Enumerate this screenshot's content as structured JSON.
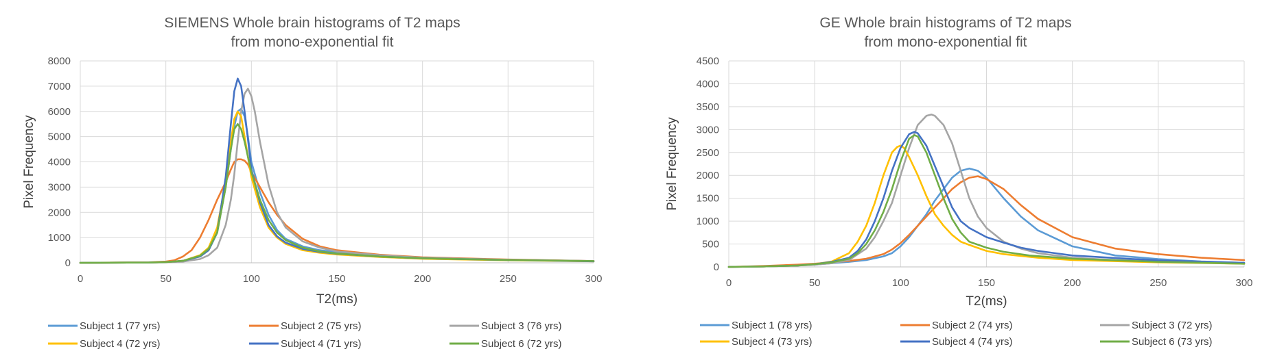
{
  "colors": {
    "blue": "#5b9bd5",
    "orange": "#ed7d31",
    "gray": "#a5a5a5",
    "yellow": "#ffc000",
    "darkblue": "#4472c4",
    "green": "#70ad47"
  },
  "chart_data": [
    {
      "type": "line",
      "title": "SIEMENS Whole brain histograms of T2 maps",
      "subtitle": "from mono-exponential fit",
      "xlabel": "T2(ms)",
      "ylabel": "Pixel Frequency",
      "xlim": [
        0,
        300
      ],
      "ylim": [
        0,
        8000
      ],
      "xticks": [
        0,
        50,
        100,
        150,
        200,
        250,
        300
      ],
      "yticks": [
        0,
        1000,
        2000,
        3000,
        4000,
        5000,
        6000,
        7000,
        8000
      ],
      "grid": true,
      "legend_position": "bottom",
      "series": [
        {
          "name": "Subject 1 (77 yrs)",
          "color": "blue",
          "x": [
            0,
            40,
            50,
            60,
            70,
            75,
            80,
            85,
            88,
            90,
            92,
            94,
            96,
            98,
            100,
            105,
            110,
            115,
            120,
            130,
            140,
            150,
            175,
            200,
            250,
            300
          ],
          "y": [
            0,
            10,
            30,
            80,
            250,
            500,
            1200,
            3000,
            4500,
            5400,
            6000,
            6100,
            5800,
            5000,
            4000,
            2800,
            1900,
            1300,
            950,
            650,
            500,
            420,
            280,
            200,
            120,
            70
          ]
        },
        {
          "name": "Subject 2 (75 yrs)",
          "color": "orange",
          "x": [
            0,
            40,
            50,
            55,
            60,
            65,
            70,
            75,
            80,
            85,
            88,
            90,
            92,
            94,
            96,
            98,
            100,
            105,
            110,
            115,
            120,
            130,
            140,
            150,
            175,
            200,
            250,
            300
          ],
          "y": [
            0,
            20,
            50,
            100,
            250,
            500,
            1000,
            1700,
            2500,
            3200,
            3700,
            4000,
            4100,
            4100,
            4050,
            3900,
            3600,
            3000,
            2400,
            1900,
            1500,
            950,
            650,
            500,
            320,
            220,
            130,
            70
          ]
        },
        {
          "name": "Subject 3 (76 yrs)",
          "color": "gray",
          "x": [
            0,
            40,
            50,
            60,
            70,
            75,
            80,
            85,
            88,
            90,
            92,
            94,
            96,
            98,
            100,
            102,
            105,
            110,
            115,
            120,
            130,
            140,
            150,
            175,
            200,
            250,
            300
          ],
          "y": [
            0,
            10,
            20,
            50,
            150,
            300,
            600,
            1500,
            2500,
            3500,
            4800,
            6000,
            6700,
            6900,
            6600,
            6000,
            4800,
            3100,
            2000,
            1400,
            850,
            600,
            450,
            300,
            200,
            120,
            70
          ]
        },
        {
          "name": "Subject 4 (72 yrs)",
          "color": "yellow",
          "x": [
            0,
            40,
            50,
            60,
            70,
            75,
            80,
            85,
            88,
            90,
            92,
            94,
            96,
            98,
            100,
            105,
            110,
            115,
            120,
            130,
            140,
            150,
            175,
            200,
            250,
            300
          ],
          "y": [
            0,
            10,
            30,
            80,
            300,
            600,
            1400,
            3200,
            4800,
            5700,
            6000,
            5800,
            5000,
            4200,
            3400,
            2200,
            1400,
            1000,
            750,
            500,
            400,
            330,
            230,
            160,
            100,
            60
          ]
        },
        {
          "name": "Subject 4 (71 yrs)",
          "color": "darkblue",
          "x": [
            0,
            40,
            50,
            60,
            70,
            75,
            80,
            85,
            88,
            90,
            92,
            94,
            96,
            98,
            100,
            105,
            110,
            115,
            120,
            130,
            140,
            150,
            175,
            200,
            250,
            300
          ],
          "y": [
            0,
            10,
            30,
            80,
            250,
            500,
            1200,
            3400,
            5500,
            6800,
            7300,
            7000,
            6000,
            4900,
            3700,
            2400,
            1500,
            1050,
            800,
            550,
            430,
            360,
            250,
            180,
            110,
            60
          ]
        },
        {
          "name": "Subject 6 (72 yrs)",
          "color": "green",
          "x": [
            0,
            40,
            50,
            60,
            70,
            75,
            80,
            85,
            88,
            90,
            92,
            94,
            96,
            98,
            100,
            105,
            110,
            115,
            120,
            130,
            140,
            150,
            175,
            200,
            250,
            300
          ],
          "y": [
            0,
            10,
            30,
            80,
            280,
            550,
            1200,
            3000,
            4500,
            5300,
            5500,
            5300,
            4800,
            4200,
            3600,
            2500,
            1700,
            1200,
            900,
            600,
            450,
            370,
            250,
            180,
            110,
            70
          ]
        }
      ]
    },
    {
      "type": "line",
      "title": "GE Whole brain histograms of T2 maps",
      "subtitle": "from mono-exponential fit",
      "xlabel": "T2(ms)",
      "ylabel": "Pixel Frequency",
      "xlim": [
        0,
        300
      ],
      "ylim": [
        0,
        4500
      ],
      "xticks": [
        0,
        50,
        100,
        150,
        200,
        250,
        300
      ],
      "yticks": [
        0,
        500,
        1000,
        1500,
        2000,
        2500,
        3000,
        3500,
        4000,
        4500
      ],
      "grid": true,
      "legend_position": "bottom",
      "series": [
        {
          "name": "Subject 1 (78 yrs)",
          "color": "blue",
          "x": [
            0,
            20,
            40,
            50,
            60,
            70,
            80,
            90,
            95,
            100,
            105,
            110,
            115,
            120,
            125,
            130,
            135,
            140,
            145,
            150,
            160,
            170,
            180,
            200,
            225,
            250,
            275,
            300
          ],
          "y": [
            0,
            10,
            30,
            50,
            80,
            110,
            150,
            230,
            300,
            450,
            650,
            900,
            1150,
            1450,
            1700,
            1950,
            2100,
            2150,
            2100,
            1950,
            1500,
            1100,
            800,
            450,
            250,
            170,
            120,
            90
          ]
        },
        {
          "name": "Subject 2 (74 yrs)",
          "color": "orange",
          "x": [
            0,
            20,
            40,
            50,
            60,
            70,
            80,
            90,
            95,
            100,
            105,
            110,
            115,
            120,
            125,
            130,
            135,
            140,
            145,
            150,
            160,
            170,
            180,
            200,
            225,
            250,
            275,
            300
          ],
          "y": [
            0,
            20,
            50,
            70,
            100,
            130,
            180,
            280,
            380,
            520,
            700,
            900,
            1100,
            1300,
            1500,
            1700,
            1850,
            1950,
            1980,
            1920,
            1700,
            1350,
            1050,
            650,
            400,
            280,
            200,
            150
          ]
        },
        {
          "name": "Subject 3 (72 yrs)",
          "color": "gray",
          "x": [
            0,
            20,
            40,
            50,
            60,
            70,
            80,
            85,
            90,
            95,
            100,
            105,
            110,
            115,
            118,
            120,
            125,
            130,
            135,
            140,
            145,
            150,
            160,
            170,
            180,
            200,
            225,
            250,
            300
          ],
          "y": [
            0,
            10,
            30,
            50,
            80,
            150,
            400,
            650,
            1000,
            1400,
            2000,
            2600,
            3100,
            3300,
            3330,
            3300,
            3100,
            2700,
            2100,
            1500,
            1100,
            850,
            550,
            400,
            300,
            200,
            150,
            120,
            80
          ]
        },
        {
          "name": "Subject 4 (73 yrs)",
          "color": "yellow",
          "x": [
            0,
            20,
            40,
            50,
            60,
            70,
            75,
            80,
            85,
            90,
            95,
            98,
            100,
            102,
            105,
            110,
            115,
            120,
            125,
            130,
            135,
            140,
            150,
            160,
            180,
            200,
            250,
            300
          ],
          "y": [
            0,
            10,
            30,
            60,
            120,
            300,
            550,
            900,
            1400,
            2000,
            2500,
            2620,
            2650,
            2600,
            2400,
            2000,
            1550,
            1150,
            900,
            700,
            550,
            480,
            350,
            280,
            200,
            150,
            100,
            70
          ]
        },
        {
          "name": "Subject 4 (74 yrs)",
          "color": "darkblue",
          "x": [
            0,
            20,
            40,
            50,
            60,
            70,
            75,
            80,
            85,
            90,
            95,
            100,
            105,
            108,
            110,
            115,
            120,
            125,
            130,
            135,
            140,
            150,
            160,
            170,
            180,
            200,
            250,
            300
          ],
          "y": [
            0,
            10,
            30,
            60,
            110,
            200,
            350,
            600,
            1000,
            1500,
            2100,
            2600,
            2900,
            2950,
            2920,
            2650,
            2200,
            1750,
            1300,
            1000,
            850,
            650,
            530,
            420,
            350,
            250,
            140,
            90
          ]
        },
        {
          "name": "Subject 6 (73 yrs)",
          "color": "green",
          "x": [
            0,
            20,
            40,
            50,
            60,
            70,
            75,
            80,
            85,
            90,
            95,
            100,
            105,
            108,
            110,
            115,
            120,
            125,
            130,
            135,
            140,
            150,
            160,
            175,
            200,
            250,
            300
          ],
          "y": [
            0,
            10,
            30,
            60,
            100,
            180,
            300,
            500,
            800,
            1200,
            1700,
            2300,
            2800,
            2880,
            2850,
            2500,
            2000,
            1500,
            1050,
            750,
            550,
            420,
            330,
            250,
            180,
            110,
            70
          ]
        }
      ]
    }
  ]
}
